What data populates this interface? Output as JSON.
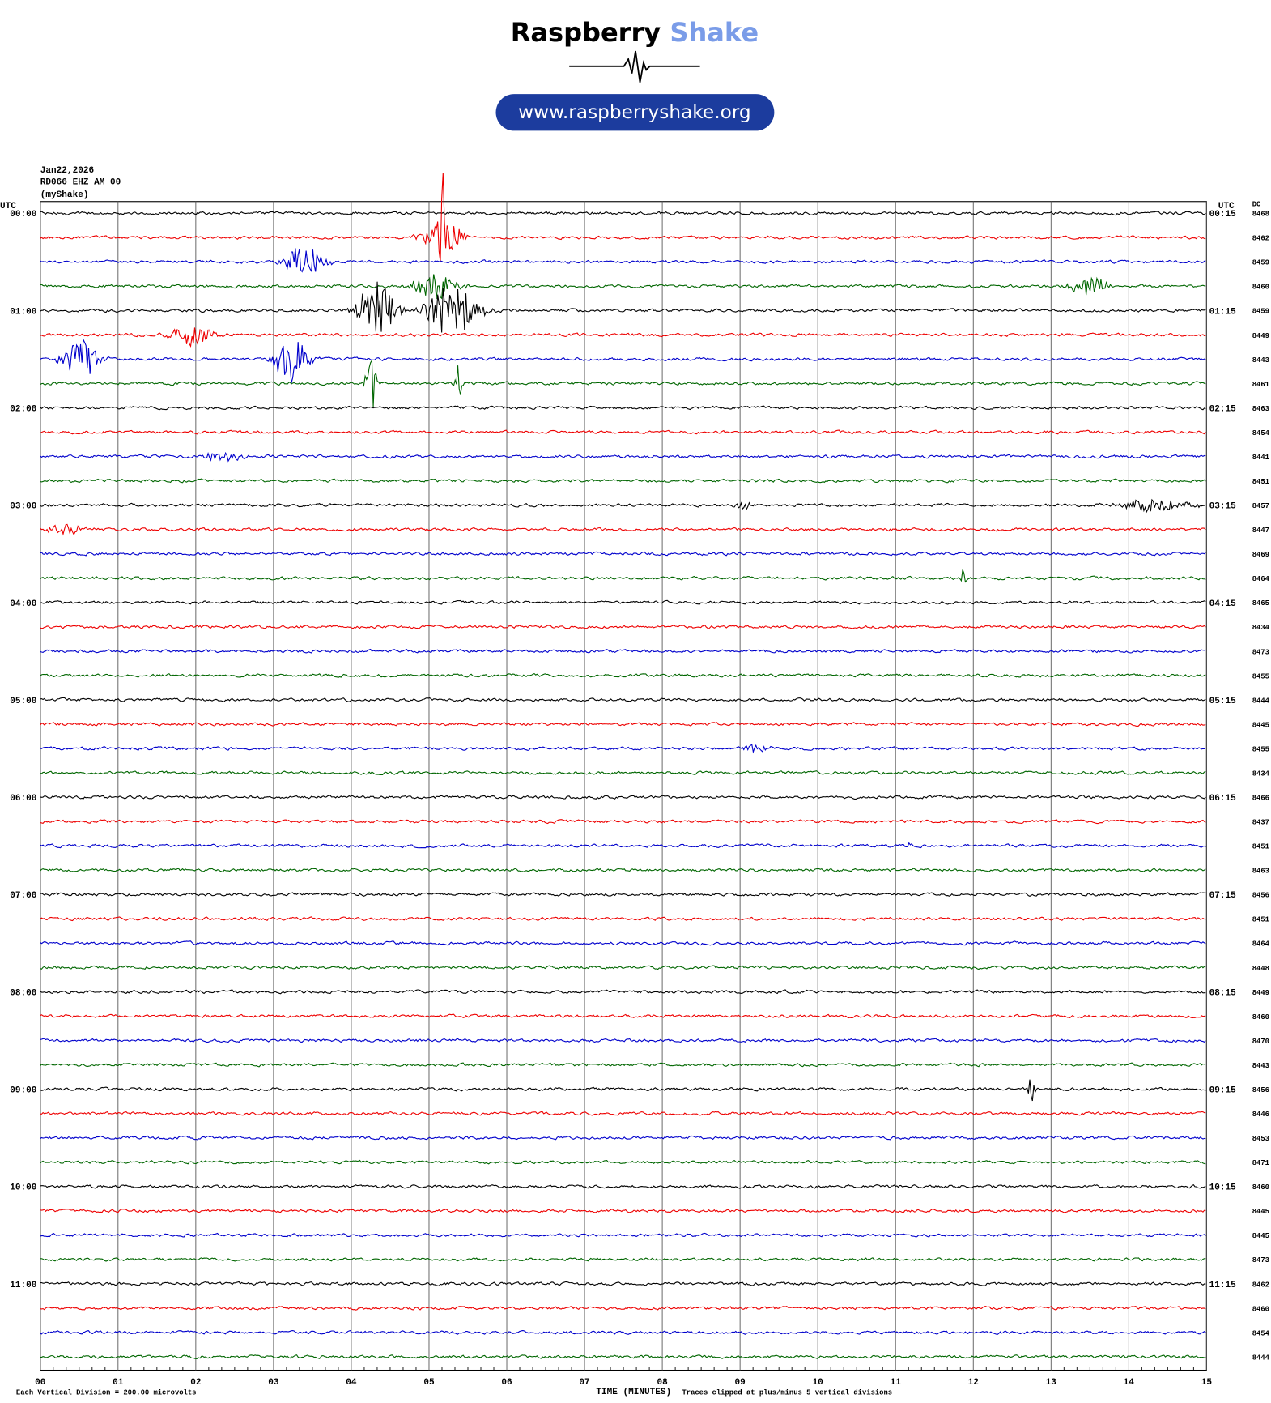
{
  "header": {
    "brand_dark": "Raspberry",
    "brand_light": "Shake",
    "url": "www.raspberryshake.org"
  },
  "info": [
    "Jan22,2026",
    "RD066 EHZ AM 00",
    "(myShake)"
  ],
  "left_axis": {
    "title": "UTC",
    "labels": [
      "00:00",
      "01:00",
      "02:00",
      "03:00",
      "04:00",
      "05:00",
      "06:00",
      "07:00",
      "08:00",
      "09:00",
      "10:00",
      "11:00"
    ]
  },
  "right_axis": {
    "title": "UTC",
    "labels": [
      "00:15",
      "01:15",
      "02:15",
      "03:15",
      "04:15",
      "05:15",
      "06:15",
      "07:15",
      "08:15",
      "09:15",
      "10:15",
      "11:15"
    ]
  },
  "dc": {
    "title": "DC",
    "values": [
      8468,
      8462,
      8459,
      8460,
      8459,
      8449,
      8443,
      8461,
      8463,
      8454,
      8441,
      8451,
      8457,
      8447,
      8469,
      8464,
      8465,
      8434,
      8473,
      8455,
      8444,
      8445,
      8455,
      8434,
      8466,
      8437,
      8451,
      8463,
      8456,
      8451,
      8464,
      8448,
      8449,
      8460,
      8470,
      8443,
      8456,
      8446,
      8453,
      8471,
      8460,
      8445,
      8445,
      8473,
      8462,
      8460,
      8454,
      8444
    ]
  },
  "x_axis": {
    "title": "TIME (MINUTES)",
    "labels": [
      "00",
      "01",
      "02",
      "03",
      "04",
      "05",
      "06",
      "07",
      "08",
      "09",
      "10",
      "11",
      "12",
      "13",
      "14",
      "15"
    ]
  },
  "footer": {
    "scale": "Each Vertical Division =  200.00 microvolts",
    "clip": "Traces clipped at plus/minus 5 vertical divisions"
  }
}
